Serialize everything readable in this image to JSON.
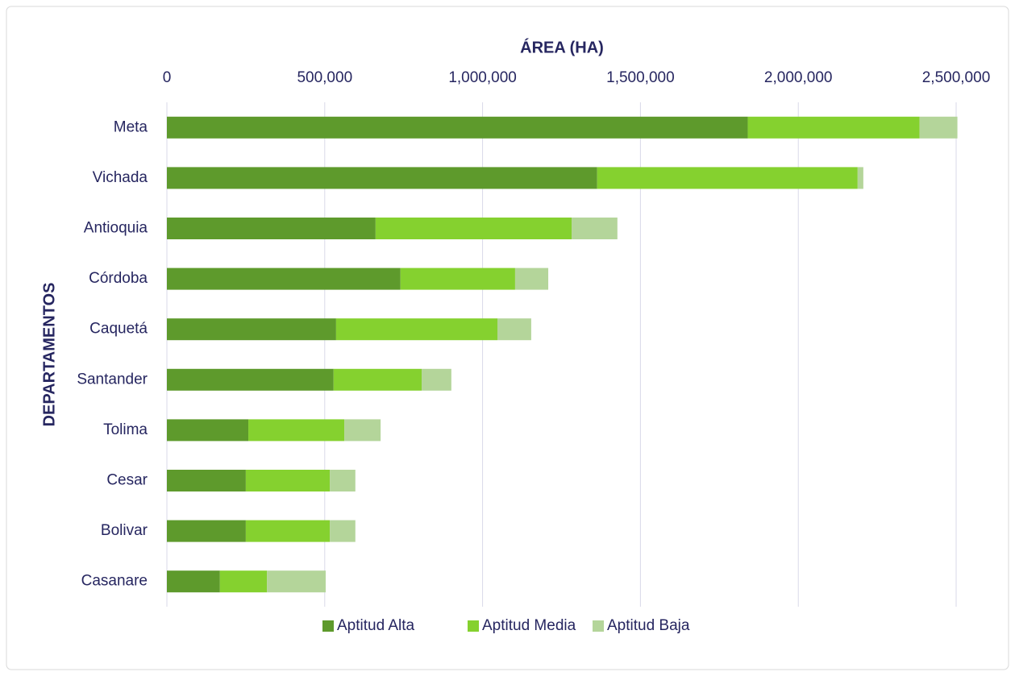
{
  "chart_data": {
    "type": "stacked_bar_horizontal",
    "xlabel": "ÁREA (HA)",
    "ylabel": "DEPARTAMENTOS",
    "categories": [
      "Meta",
      "Vichada",
      "Antioquia",
      "Córdoba",
      "Caquetá",
      "Santander",
      "Tolima",
      "Cesar",
      "Bolivar",
      "Casanare"
    ],
    "series": [
      {
        "name": "Aptitud Alta",
        "color": "#5e9a2c",
        "values": [
          1840000,
          1363000,
          661000,
          740000,
          536000,
          528000,
          258000,
          250000,
          250000,
          168000
        ]
      },
      {
        "name": "Aptitud Media",
        "color": "#85d12f",
        "values": [
          544000,
          825000,
          621000,
          363000,
          511000,
          279000,
          304000,
          266000,
          266000,
          149000
        ]
      },
      {
        "name": "Aptitud Baja",
        "color": "#b4d59a",
        "values": [
          120000,
          18000,
          145000,
          105000,
          107000,
          94000,
          115000,
          81000,
          81000,
          186000
        ]
      }
    ],
    "xlim": [
      0,
      2500000
    ],
    "xticks": [
      0,
      {
        "value": 500000,
        "label": "500,000"
      },
      {
        "value": 1000000,
        "label": "1,000,000"
      },
      {
        "value": 1500000,
        "label": "1,500,000"
      },
      {
        "value": 2000000,
        "label": "2,000,000"
      },
      {
        "value": 2500000,
        "label": "2,500,000"
      }
    ],
    "grid": true,
    "legend": "bottom"
  }
}
